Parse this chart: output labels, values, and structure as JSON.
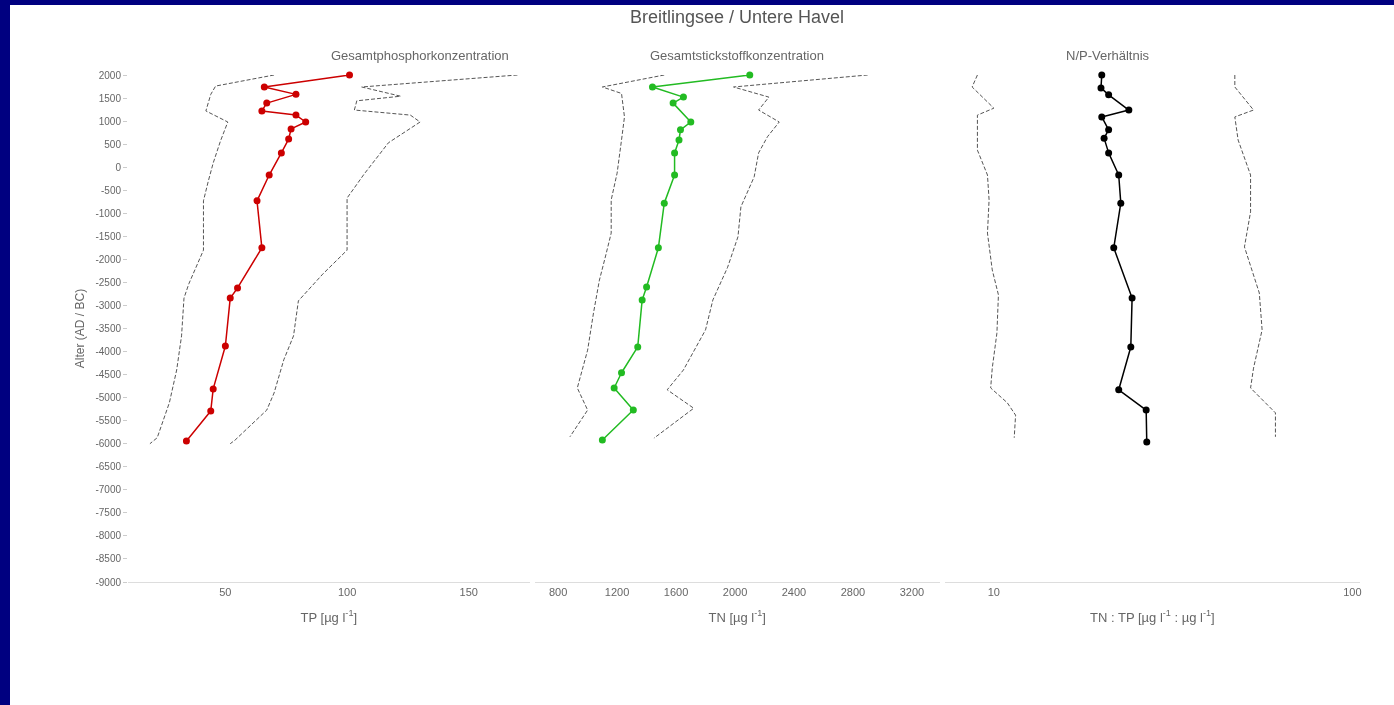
{
  "chart_data": [
    {
      "type": "line",
      "subtitle": "Gesamtphosphorkonzentration",
      "xlabel": "TP [µg l$^{-1}$]",
      "ylabel": "Alter (AD / BC)",
      "xlim": [
        10,
        175
      ],
      "xticks": [
        50,
        100,
        150
      ],
      "ylim": [
        -9000,
        2000
      ],
      "yticks": [
        2000,
        1500,
        1000,
        500,
        0,
        -500,
        -1000,
        -1500,
        -2000,
        -2500,
        -3000,
        -3500,
        -4000,
        -4500,
        -5000,
        -5500,
        -6000,
        -6500,
        -7000,
        -7500,
        -8000,
        -8500,
        -9000
      ],
      "grid": false,
      "series": [
        {
          "color": "#555555",
          "line_style": "dashed",
          "marker": "none",
          "x": [
            70,
            46,
            44,
            42,
            51,
            48,
            45,
            43,
            41,
            41,
            41,
            35,
            33,
            32,
            30,
            27,
            22,
            19
          ],
          "values": [
            2000,
            1760,
            1580,
            1220,
            980,
            570,
            90,
            -300,
            -730,
            -1250,
            -1800,
            -2530,
            -2840,
            -3660,
            -4400,
            -5110,
            -5870,
            -6000
          ]
        },
        {
          "color": "#cc0000",
          "line_style": "solid",
          "marker": "circle",
          "x": [
            101,
            66,
            79,
            67,
            65,
            79,
            83,
            77,
            76,
            73,
            68,
            63,
            65,
            55,
            52,
            50,
            45,
            44,
            34
          ],
          "values": [
            2000,
            1740,
            1580,
            1390,
            1220,
            1130,
            980,
            830,
            610,
            310,
            -170,
            -730,
            -1750,
            -2620,
            -2840,
            -3880,
            -4810,
            -5290,
            -5940
          ]
        },
        {
          "color": "#555555",
          "line_style": "dashed",
          "marker": "none",
          "x": [
            170,
            106,
            122,
            104,
            103,
            126,
            130,
            117,
            107,
            100,
            100,
            100,
            90,
            80,
            78,
            74,
            70,
            67,
            54,
            52
          ],
          "values": [
            2000,
            1740,
            1540,
            1440,
            1240,
            1130,
            980,
            530,
            -150,
            -670,
            -1250,
            -1800,
            -2320,
            -2900,
            -3660,
            -4180,
            -4900,
            -5270,
            -5920,
            -6000
          ]
        }
      ]
    },
    {
      "type": "line",
      "title": "Breitlingsee / Untere Havel",
      "subtitle": "Gesamtstickstoffkonzentration",
      "xlabel": "TN [µg l$^{-1}$]",
      "tick_labels": "x",
      "xlim": [
        640,
        3390
      ],
      "xticks": [
        800,
        1200,
        1600,
        2000,
        2400,
        2800,
        3200
      ],
      "ylim": [
        -9000,
        2000
      ],
      "yticks": [
        2000,
        1500,
        1000,
        500,
        0,
        -500,
        -1000,
        -1500,
        -2000,
        -2500,
        -3000,
        -3500,
        -4000,
        -4500,
        -5000,
        -5500,
        -6000,
        -6500,
        -7000,
        -7500,
        -8000,
        -8500,
        -9000
      ],
      "grid": false,
      "series": [
        {
          "color": "#555555",
          "line_style": "dashed",
          "marker": "none",
          "x": [
            1520,
            1100,
            1230,
            1250,
            1230,
            1200,
            1160,
            1160,
            1120,
            1080,
            1040,
            1000,
            930,
            1000,
            880
          ],
          "values": [
            2000,
            1740,
            1600,
            1090,
            590,
            -130,
            -710,
            -1430,
            -1950,
            -2450,
            -3160,
            -3970,
            -4790,
            -5270,
            -5850
          ]
        },
        {
          "color": "#22bb22",
          "line_style": "solid",
          "marker": "circle",
          "x": [
            2100,
            1440,
            1650,
            1580,
            1700,
            1630,
            1620,
            1590,
            1590,
            1520,
            1480,
            1400,
            1370,
            1340,
            1230,
            1180,
            1310,
            1100
          ],
          "values": [
            2000,
            1740,
            1520,
            1390,
            980,
            810,
            590,
            310,
            -170,
            -780,
            -1750,
            -2600,
            -2880,
            -3900,
            -4460,
            -4790,
            -5270,
            -5920
          ]
        },
        {
          "color": "#555555",
          "line_style": "dashed",
          "marker": "none",
          "x": [
            2900,
            1990,
            2230,
            2160,
            2300,
            2220,
            2160,
            2130,
            2040,
            2020,
            1950,
            1850,
            1800,
            1650,
            1540,
            1720,
            1450
          ],
          "values": [
            2000,
            1740,
            1520,
            1240,
            980,
            660,
            310,
            -210,
            -860,
            -1510,
            -2170,
            -2880,
            -3530,
            -4400,
            -4830,
            -5230,
            -5880
          ]
        }
      ]
    },
    {
      "type": "line",
      "subtitle": "N/P-Verhältnis",
      "xlabel": "TN : TP [µg l$^{-1}$ : µg l$^{-1}$]",
      "tick_labels": "x",
      "log": "x",
      "xlim": [
        7.3,
        105
      ],
      "xticks": [
        10,
        100
      ],
      "ylim": [
        -9000,
        2000
      ],
      "yticks": [
        2000,
        1500,
        1000,
        500,
        0,
        -500,
        -1000,
        -1500,
        -2000,
        -2500,
        -3000,
        -3500,
        -4000,
        -4500,
        -5000,
        -5500,
        -6000,
        -6500,
        -7000,
        -7500,
        -8000,
        -8500,
        -9000
      ],
      "grid": false,
      "series": [
        {
          "color": "#555555",
          "line_style": "dashed",
          "marker": "none",
          "x": [
            9.0,
            8.7,
            10,
            9.0,
            9.0,
            9.0,
            9.6,
            9.7,
            9.6,
            9.9,
            10.3,
            10.2,
            9.9,
            9.8,
            10.9,
            11.5,
            11.4
          ],
          "values": [
            2000,
            1740,
            1280,
            1130,
            810,
            370,
            -170,
            -710,
            -1430,
            -2230,
            -2770,
            -3600,
            -4360,
            -4790,
            -5110,
            -5380,
            -5870
          ]
        },
        {
          "color": "#000000",
          "line_style": "solid",
          "marker": "circle",
          "x": [
            20,
            19.9,
            20.9,
            23.8,
            20,
            20.9,
            20.3,
            20.9,
            22.3,
            22.6,
            21.6,
            24.3,
            24.1,
            22.3,
            26.6,
            26.7
          ],
          "values": [
            2000,
            1720,
            1570,
            1240,
            1090,
            810,
            630,
            310,
            -170,
            -780,
            -1750,
            -2840,
            -3900,
            -4830,
            -5270,
            -5960
          ]
        },
        {
          "color": "#555555",
          "line_style": "dashed",
          "marker": "none",
          "x": [
            47,
            47,
            53,
            47,
            48,
            52,
            52,
            50,
            55,
            56,
            53,
            52,
            61,
            61
          ],
          "values": [
            2000,
            1740,
            1240,
            1090,
            590,
            -170,
            -970,
            -1730,
            -2730,
            -3530,
            -4360,
            -4790,
            -5330,
            -5850
          ]
        }
      ]
    }
  ]
}
